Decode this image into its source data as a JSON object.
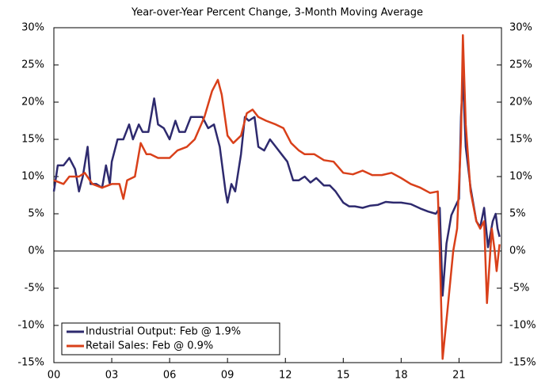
{
  "chart_data": {
    "type": "line",
    "subtitle": "Year-over-Year Percent Change, 3-Month Moving Average",
    "xlim": [
      2000,
      2023.2
    ],
    "xticks": [
      {
        "value": 2000,
        "label": "00"
      },
      {
        "value": 2003,
        "label": "03"
      },
      {
        "value": 2006,
        "label": "06"
      },
      {
        "value": 2009,
        "label": "09"
      },
      {
        "value": 2012,
        "label": "12"
      },
      {
        "value": 2015,
        "label": "15"
      },
      {
        "value": 2018,
        "label": "18"
      },
      {
        "value": 2021,
        "label": "21"
      }
    ],
    "ylim": [
      -15,
      30
    ],
    "yticks": [
      {
        "value": -15,
        "label": "-15%"
      },
      {
        "value": -10,
        "label": "-10%"
      },
      {
        "value": -5,
        "label": "-5%"
      },
      {
        "value": 0,
        "label": "0%"
      },
      {
        "value": 5,
        "label": "5%"
      },
      {
        "value": 10,
        "label": "10%"
      },
      {
        "value": 15,
        "label": "15%"
      },
      {
        "value": 20,
        "label": "20%"
      },
      {
        "value": 25,
        "label": "25%"
      },
      {
        "value": 30,
        "label": "30%"
      }
    ],
    "y2lim": [
      -15,
      30
    ],
    "y2ticks": [
      {
        "value": -15,
        "label": "-15%"
      },
      {
        "value": -10,
        "label": "-10%"
      },
      {
        "value": -5,
        "label": "-5%"
      },
      {
        "value": 0,
        "label": "0%"
      },
      {
        "value": 5,
        "label": "5%"
      },
      {
        "value": 10,
        "label": "10%"
      },
      {
        "value": 15,
        "label": "15%"
      },
      {
        "value": 20,
        "label": "20%"
      },
      {
        "value": 25,
        "label": "25%"
      },
      {
        "value": 30,
        "label": "30%"
      }
    ],
    "legend": "lower left",
    "series": [
      {
        "name": "Industrial Output: Feb @ 1.9%",
        "color": "#2e2a6e",
        "x": [
          2000,
          2000.2,
          2000.5,
          2000.8,
          2001.1,
          2001.3,
          2001.5,
          2001.75,
          2001.9,
          2002.2,
          2002.5,
          2002.7,
          2002.9,
          2003.0,
          2003.3,
          2003.6,
          2003.9,
          2004.1,
          2004.4,
          2004.6,
          2004.9,
          2005.2,
          2005.4,
          2005.7,
          2006.0,
          2006.3,
          2006.5,
          2006.8,
          2007.1,
          2007.4,
          2007.7,
          2008.0,
          2008.3,
          2008.6,
          2008.9,
          2009.0,
          2009.2,
          2009.4,
          2009.7,
          2009.9,
          2010.1,
          2010.4,
          2010.6,
          2010.9,
          2011.2,
          2011.5,
          2011.8,
          2012.1,
          2012.4,
          2012.7,
          2013.0,
          2013.3,
          2013.6,
          2014.0,
          2014.3,
          2014.6,
          2015.0,
          2015.3,
          2015.6,
          2016.0,
          2016.4,
          2016.8,
          2017.2,
          2017.6,
          2018.0,
          2018.5,
          2019.0,
          2019.4,
          2019.8,
          2020.0,
          2020.15,
          2020.35,
          2020.6,
          2020.9,
          2021.0,
          2021.1,
          2021.2,
          2021.35,
          2021.6,
          2021.9,
          2022.1,
          2022.3,
          2022.5,
          2022.75,
          2022.9,
          2023.0,
          2023.1
        ],
        "values": [
          8,
          11.5,
          11.5,
          12.5,
          11,
          8,
          10,
          14,
          9,
          9,
          8.5,
          11.5,
          9,
          12,
          15,
          15,
          17,
          15,
          17,
          16,
          16,
          20.5,
          17,
          16.5,
          15,
          17.5,
          16,
          16,
          18,
          18,
          18,
          16.5,
          17,
          14,
          8,
          6.5,
          9,
          8,
          13,
          18,
          17.5,
          18,
          14,
          13.5,
          15,
          14,
          13,
          12,
          9.5,
          9.5,
          10,
          9.2,
          9.8,
          8.8,
          8.8,
          8,
          6.5,
          6,
          6,
          5.8,
          6.1,
          6.2,
          6.6,
          6.5,
          6.5,
          6.3,
          5.7,
          5.3,
          5,
          5.8,
          -6,
          1,
          4.8,
          6.5,
          7,
          18,
          23.5,
          14,
          8.5,
          4,
          3.2,
          5.8,
          0.5,
          4,
          5,
          3,
          1.9
        ]
      },
      {
        "name": "Retail Sales: Feb @ 0.9%",
        "color": "#d9401a",
        "x": [
          2000,
          2000.5,
          2000.8,
          2001.3,
          2001.6,
          2002.0,
          2002.5,
          2003.0,
          2003.4,
          2003.6,
          2003.8,
          2004.2,
          2004.5,
          2004.8,
          2005.0,
          2005.4,
          2006.0,
          2006.4,
          2006.9,
          2007.3,
          2007.8,
          2008.2,
          2008.5,
          2008.7,
          2009.0,
          2009.3,
          2009.7,
          2010.0,
          2010.3,
          2010.6,
          2011.0,
          2011.5,
          2011.9,
          2012.3,
          2012.7,
          2013.0,
          2013.5,
          2014.0,
          2014.5,
          2015.0,
          2015.5,
          2016.0,
          2016.5,
          2017.0,
          2017.5,
          2018.0,
          2018.5,
          2019.0,
          2019.5,
          2019.9,
          2020.0,
          2020.15,
          2020.4,
          2020.7,
          2020.9,
          2021.1,
          2021.2,
          2021.35,
          2021.6,
          2021.9,
          2022.1,
          2022.3,
          2022.45,
          2022.7,
          2022.85,
          2022.95,
          2023.1
        ],
        "values": [
          9.5,
          9,
          10,
          10,
          10.5,
          9,
          8.5,
          9,
          9,
          7,
          9.5,
          10,
          14.5,
          13,
          13,
          12.5,
          12.5,
          13.5,
          14,
          15,
          18,
          21.5,
          23,
          21,
          15.5,
          14.5,
          15.5,
          18.5,
          19,
          18,
          17.5,
          17,
          16.5,
          14.5,
          13.5,
          13,
          13,
          12.2,
          12,
          10.5,
          10.3,
          10.8,
          10.2,
          10.2,
          10.5,
          9.8,
          9,
          8.5,
          7.8,
          8,
          0,
          -14.5,
          -8,
          0,
          3,
          15,
          29,
          17,
          8,
          4,
          3,
          4,
          -7,
          3,
          0,
          -2.7,
          0.9
        ]
      }
    ]
  }
}
